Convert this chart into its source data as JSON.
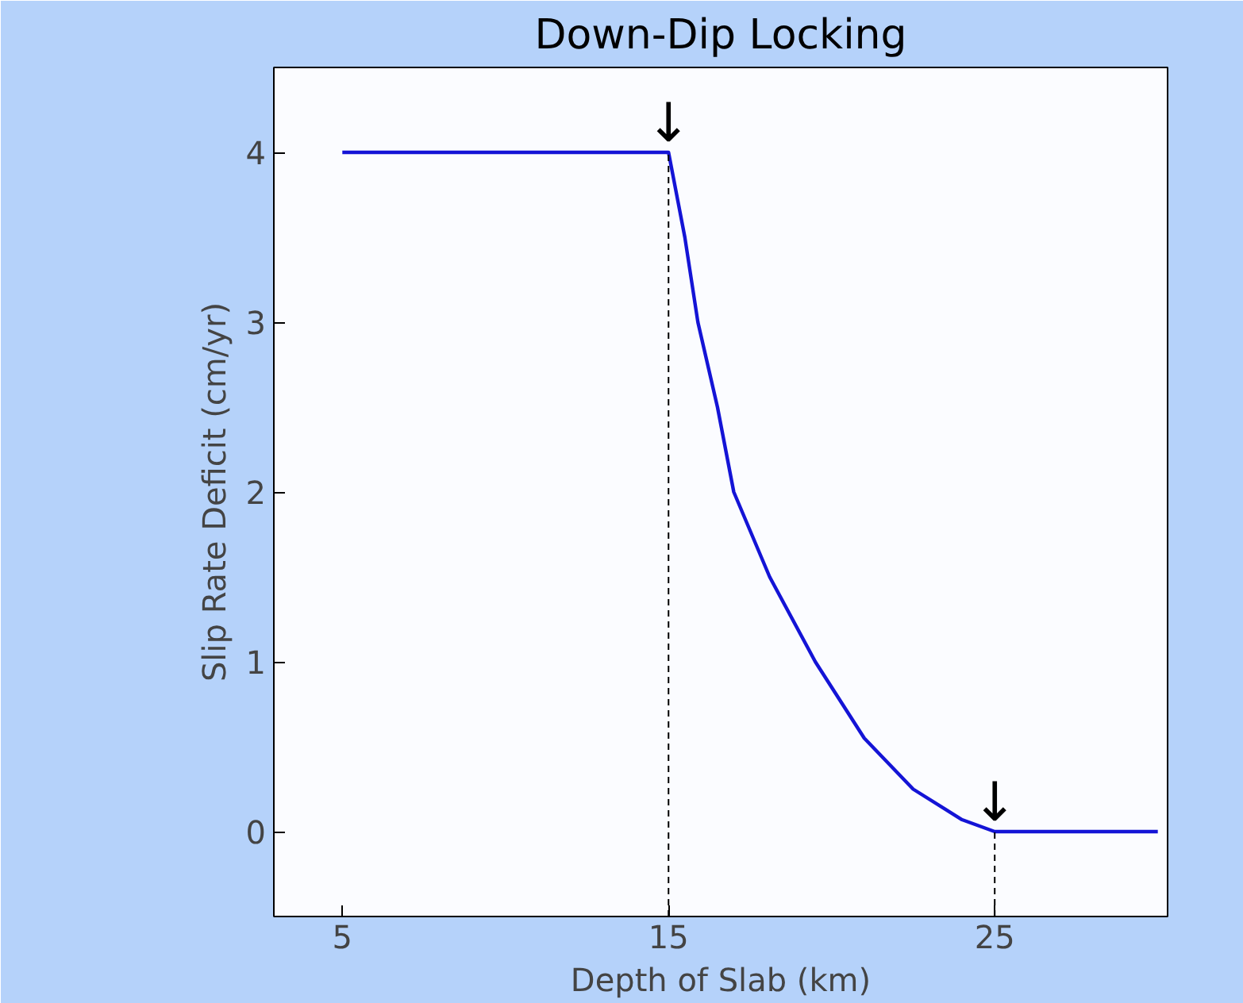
{
  "chart_data": {
    "type": "line",
    "title": "Down-Dip Locking",
    "xlabel": "Depth of Slab (km)",
    "ylabel": "Slip Rate Deficit (cm/yr)",
    "x": [
      5,
      15,
      15.5,
      15.9,
      16.5,
      17,
      18.1,
      19.5,
      21,
      22.5,
      24,
      25,
      30
    ],
    "series": [
      {
        "color": "#1414d6",
        "values": [
          4,
          4,
          3.5,
          3,
          2.5,
          2,
          1.5,
          1,
          0.55,
          0.25,
          0.07,
          0,
          0
        ]
      }
    ],
    "xlim": [
      2.9,
      30.3
    ],
    "ylim": [
      -0.5,
      4.5
    ],
    "xticks": [
      5,
      15,
      25
    ],
    "yticks": [
      0,
      1,
      2,
      3,
      4
    ],
    "grid": false,
    "annotations": [
      {
        "text": "↓",
        "x": 15,
        "y": 4
      },
      {
        "text": "↓",
        "x": 25,
        "y": 0
      }
    ],
    "ref_lines": [
      {
        "axis": "x",
        "value": 15,
        "label": null,
        "line_style": "dashed",
        "color": "#000000"
      },
      {
        "axis": "x",
        "value": 25,
        "label": null,
        "line_style": "dashed",
        "color": "#000000"
      }
    ]
  }
}
